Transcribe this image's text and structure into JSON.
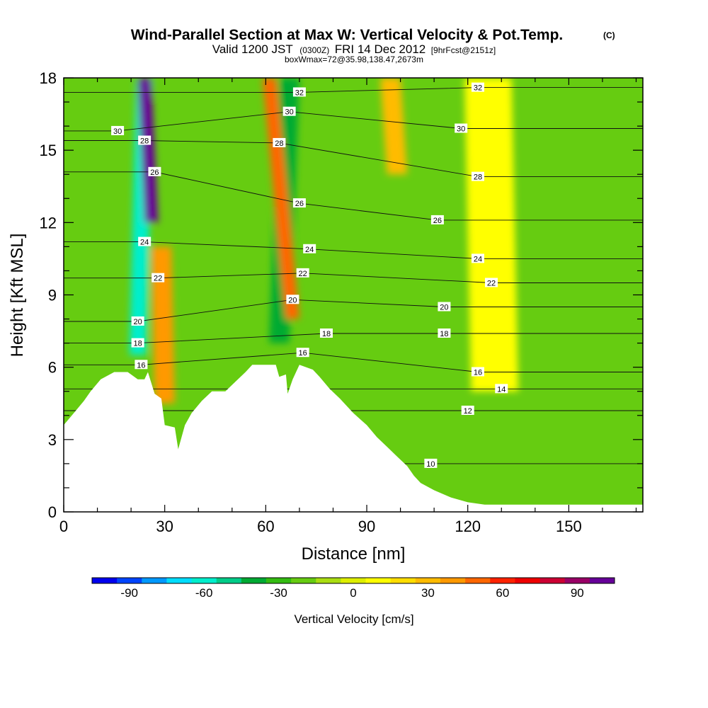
{
  "title": {
    "main": "Wind-Parallel Section at Max W: Vertical Velocity & Pot.Temp.",
    "copyright": "(C)",
    "valid_prefix": "Valid 1200 JST",
    "valid_utc": "(0300Z)",
    "valid_date": "FRI 14 Dec 2012",
    "forecast": "[9hrFcst@2151z]",
    "box_info": "boxWmax=72@35.98,138.47,2673m"
  },
  "chart_data": {
    "type": "heatmap",
    "xlabel": "Distance [nm]",
    "ylabel": "Height [Kft MSL]",
    "xlim": [
      0,
      172
    ],
    "ylim": [
      0,
      18
    ],
    "x_ticks": [
      0,
      30,
      60,
      90,
      120,
      150
    ],
    "y_ticks": [
      0,
      3,
      6,
      9,
      12,
      15,
      18
    ],
    "terrain_kft": [
      [
        0,
        3.6
      ],
      [
        3,
        4.1
      ],
      [
        6,
        4.6
      ],
      [
        8,
        5.0
      ],
      [
        11,
        5.5
      ],
      [
        15,
        5.8
      ],
      [
        19,
        5.8
      ],
      [
        22,
        5.5
      ],
      [
        24,
        5.5
      ],
      [
        25,
        5.8
      ],
      [
        27,
        4.9
      ],
      [
        29,
        4.7
      ],
      [
        30,
        3.6
      ],
      [
        33,
        3.5
      ],
      [
        34,
        2.6
      ],
      [
        36,
        3.6
      ],
      [
        38,
        4.1
      ],
      [
        41,
        4.6
      ],
      [
        44,
        5.0
      ],
      [
        48,
        5.0
      ],
      [
        51,
        5.4
      ],
      [
        54,
        5.8
      ],
      [
        56,
        6.1
      ],
      [
        60,
        6.1
      ],
      [
        63,
        6.1
      ],
      [
        64,
        5.6
      ],
      [
        66,
        5.7
      ],
      [
        66.5,
        4.9
      ],
      [
        68,
        5.5
      ],
      [
        70,
        6.1
      ],
      [
        74,
        5.9
      ],
      [
        76,
        5.6
      ],
      [
        79,
        5.1
      ],
      [
        82,
        4.7
      ],
      [
        86,
        4.1
      ],
      [
        90,
        3.6
      ],
      [
        93,
        3.1
      ],
      [
        96,
        2.7
      ],
      [
        99,
        2.3
      ],
      [
        102,
        1.9
      ],
      [
        104,
        1.5
      ],
      [
        106,
        1.2
      ],
      [
        110,
        0.9
      ],
      [
        115,
        0.6
      ],
      [
        120,
        0.4
      ],
      [
        125,
        0.3
      ],
      [
        172,
        0.3
      ]
    ],
    "vertical_velocity_features": [
      {
        "x_top": 24,
        "x_bottom": 22,
        "y_top": 18,
        "y_bottom": 6.5,
        "w_cms": -60,
        "width_nm": 5
      },
      {
        "x_top": 24,
        "x_bottom": 26,
        "y_top": 18,
        "y_bottom": 12,
        "w_cms": 95,
        "width_nm": 4
      },
      {
        "x_top": 29,
        "x_bottom": 30,
        "y_top": 11,
        "y_bottom": 4.5,
        "w_cms": 35,
        "width_nm": 6
      },
      {
        "x_top": 67,
        "x_bottom": 64,
        "y_top": 18,
        "y_bottom": 7,
        "w_cms": -40,
        "width_nm": 6
      },
      {
        "x_top": 61,
        "x_bottom": 68,
        "y_top": 18,
        "y_bottom": 8,
        "w_cms": 45,
        "width_nm": 4
      },
      {
        "x_top": 97,
        "x_bottom": 99,
        "y_top": 18,
        "y_bottom": 14,
        "w_cms": 30,
        "width_nm": 6
      },
      {
        "x_top": 126,
        "x_bottom": 128,
        "y_top": 18,
        "y_bottom": 5,
        "w_cms": 5,
        "width_nm": 14
      }
    ],
    "theta_contour_labels": [
      {
        "text": "32",
        "x": 70,
        "y": 17.4
      },
      {
        "text": "32",
        "x": 123,
        "y": 17.6
      },
      {
        "text": "30",
        "x": 16,
        "y": 15.8
      },
      {
        "text": "30",
        "x": 67,
        "y": 16.6
      },
      {
        "text": "30",
        "x": 118,
        "y": 15.9
      },
      {
        "text": "28",
        "x": 24,
        "y": 15.4
      },
      {
        "text": "28",
        "x": 64,
        "y": 15.3
      },
      {
        "text": "28",
        "x": 123,
        "y": 13.9
      },
      {
        "text": "26",
        "x": 27,
        "y": 14.1
      },
      {
        "text": "26",
        "x": 70,
        "y": 12.8
      },
      {
        "text": "26",
        "x": 111,
        "y": 12.1
      },
      {
        "text": "24",
        "x": 24,
        "y": 11.2
      },
      {
        "text": "24",
        "x": 73,
        "y": 10.9
      },
      {
        "text": "24",
        "x": 123,
        "y": 10.5
      },
      {
        "text": "22",
        "x": 28,
        "y": 9.7
      },
      {
        "text": "22",
        "x": 71,
        "y": 9.9
      },
      {
        "text": "22",
        "x": 127,
        "y": 9.5
      },
      {
        "text": "20",
        "x": 22,
        "y": 7.9
      },
      {
        "text": "20",
        "x": 68,
        "y": 8.8
      },
      {
        "text": "20",
        "x": 113,
        "y": 8.5
      },
      {
        "text": "18",
        "x": 22,
        "y": 7.0
      },
      {
        "text": "18",
        "x": 78,
        "y": 7.4
      },
      {
        "text": "18",
        "x": 113,
        "y": 7.4
      },
      {
        "text": "16",
        "x": 23,
        "y": 6.1
      },
      {
        "text": "16",
        "x": 71,
        "y": 6.6
      },
      {
        "text": "16",
        "x": 123,
        "y": 5.8
      },
      {
        "text": "14",
        "x": 130,
        "y": 5.1
      },
      {
        "text": "12",
        "x": 120,
        "y": 4.2
      },
      {
        "text": "10",
        "x": 109,
        "y": 2.0
      }
    ]
  },
  "colorbar": {
    "title": "Vertical Velocity [cm/s]",
    "tick_labels": [
      "-90",
      "-60",
      "-30",
      "0",
      "30",
      "60",
      "90"
    ],
    "colors": [
      "#0000ee",
      "#0044ff",
      "#0099ff",
      "#00ddff",
      "#00eecc",
      "#00cc88",
      "#00aa33",
      "#33bb11",
      "#66cc11",
      "#aadd11",
      "#ddee00",
      "#ffff00",
      "#ffdd00",
      "#ffbb00",
      "#ff9900",
      "#ff6600",
      "#ff2200",
      "#ee0000",
      "#cc0033",
      "#990066",
      "#660099"
    ]
  }
}
